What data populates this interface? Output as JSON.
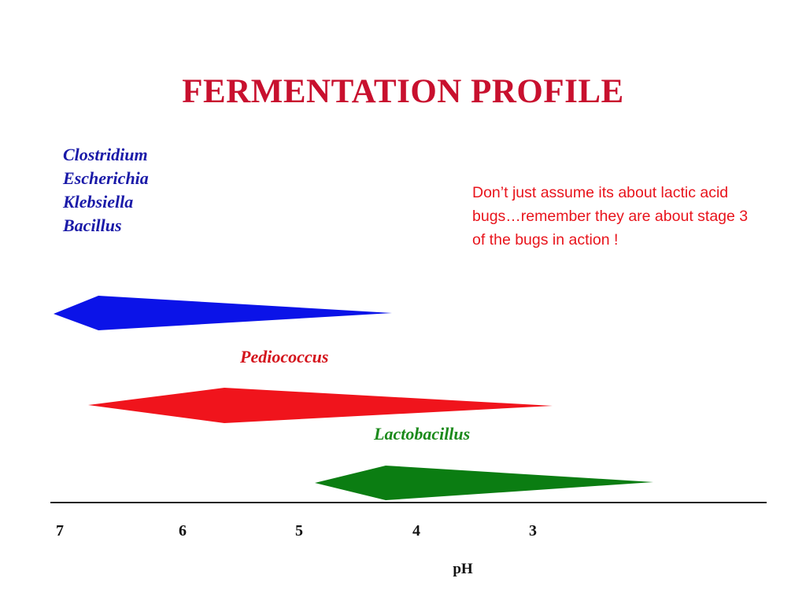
{
  "title": "FERMENTATION PROFILE",
  "organisms": [
    "Clostridium",
    "Escherichia",
    "Klebsiella",
    "Bacillus"
  ],
  "note": "Don’t just assume its about lactic acid bugs…remember they are about stage 3 of the bugs in action !",
  "labels": {
    "pediococcus": "Pediococcus",
    "lactobacillus": "Lactobacillus"
  },
  "axis": {
    "ticks": [
      "7",
      "6",
      "5",
      "4",
      "3"
    ],
    "label": "pH"
  },
  "colors": {
    "title": "#c8102e",
    "blue": "#0b13e8",
    "red": "#f0141c",
    "green": "#0b7d12",
    "note": "#e8141c"
  }
}
